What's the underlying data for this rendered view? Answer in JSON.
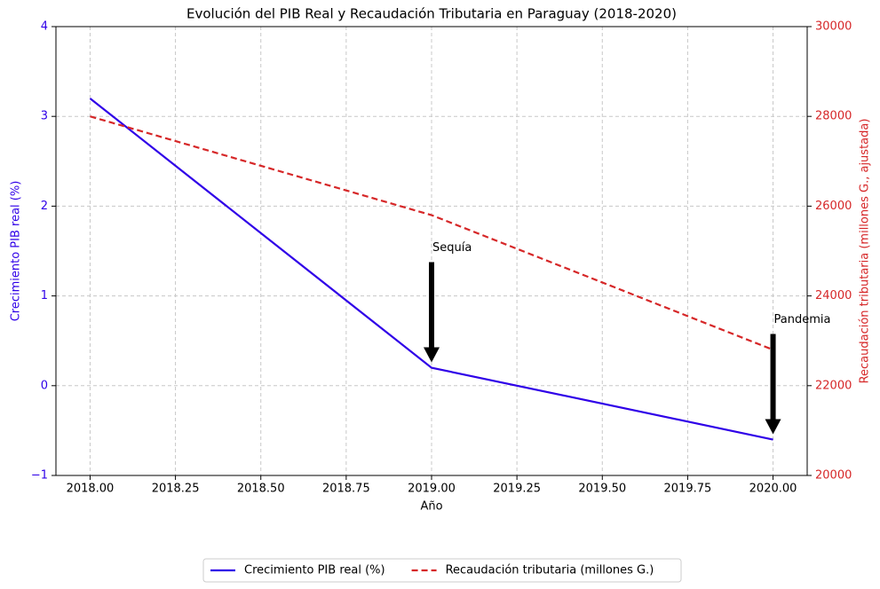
{
  "chart_data": {
    "type": "line",
    "title": "Evolución del PIB Real y Recaudación Tributaria en Paraguay (2018-2020)",
    "x_label": "Año",
    "y_label": "Crecimiento PIB real (%)",
    "y2_label": "Recaudación tributaria (millones G., ajustada)",
    "x": [
      2018,
      2019,
      2020
    ],
    "xlim": [
      2017.9,
      2020.1
    ],
    "xticks": [
      {
        "value": 2018,
        "label": "2018.00"
      },
      {
        "value": 2018.25,
        "label": "2018.25"
      },
      {
        "value": 2018.5,
        "label": "2018.50"
      },
      {
        "value": 2018.75,
        "label": "2018.75"
      },
      {
        "value": 2019,
        "label": "2019.00"
      },
      {
        "value": 2019.25,
        "label": "2019.25"
      },
      {
        "value": 2019.5,
        "label": "2019.50"
      },
      {
        "value": 2019.75,
        "label": "2019.75"
      },
      {
        "value": 2020,
        "label": "2020.00"
      }
    ],
    "ylim": [
      -1,
      4
    ],
    "yticks": [
      {
        "value": -1,
        "label": "−1"
      },
      0,
      1,
      2,
      3,
      4
    ],
    "y2lim": [
      20000,
      30000
    ],
    "y2ticks": [
      20000,
      22000,
      24000,
      26000,
      28000,
      30000
    ],
    "y_color": "#2f00e8",
    "y2_color": "#d62728",
    "grid": true,
    "legend": "bottom",
    "series": [
      {
        "name": "Crecimiento PIB real (%)",
        "color": "#2f00e8",
        "style": "solid",
        "values": [
          3.2,
          0.2,
          -0.6
        ]
      },
      {
        "name": "Recaudación tributaria (millones G.)",
        "color": "#d62728",
        "style": "dashed",
        "axis": "y2",
        "values": [
          28000,
          25800,
          22800
        ]
      }
    ],
    "annotations": [
      {
        "text": "Sequía",
        "x": 2019,
        "y": 0.2
      },
      {
        "text": "Pandemia",
        "x": 2020,
        "y": -0.6
      }
    ]
  }
}
